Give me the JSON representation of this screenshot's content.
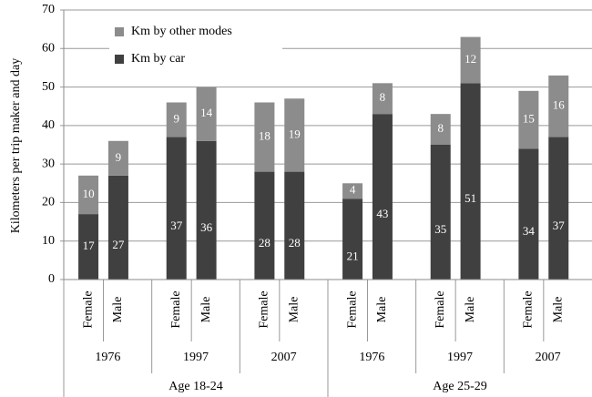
{
  "chart_data": {
    "type": "stacked_bar",
    "y_label": "Kilometers per trip maker and day",
    "categories": [
      "Female",
      "Male",
      "Female",
      "Male",
      "Female",
      "Male",
      "Female",
      "Male",
      "Female",
      "Male",
      "Female",
      "Male"
    ],
    "year_labels": [
      "1976",
      "1997",
      "2007",
      "1976",
      "1997",
      "2007"
    ],
    "age_labels": [
      "Age 18-24",
      "Age 25-29"
    ],
    "series": [
      {
        "name": "Km by car",
        "color": "#404040",
        "values": [
          17,
          27,
          37,
          36,
          28,
          28,
          21,
          43,
          35,
          51,
          34,
          37
        ]
      },
      {
        "name": "Km by other modes",
        "color": "#8c8c8c",
        "values": [
          10,
          9,
          9,
          14,
          18,
          19,
          4,
          8,
          8,
          12,
          15,
          16
        ]
      }
    ],
    "ylim": [
      0,
      70
    ],
    "yticks": [
      0,
      10,
      20,
      30,
      40,
      50,
      60,
      70
    ],
    "grid": true,
    "legend": "top-left"
  }
}
